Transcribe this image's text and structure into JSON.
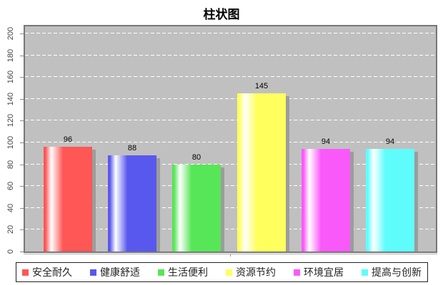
{
  "title": "柱状图",
  "chart_data": {
    "type": "bar",
    "title": "柱状图",
    "categories": [
      "安全耐久",
      "健康舒适",
      "生活便利",
      "资源节约",
      "环境宜居",
      "提高与创新"
    ],
    "values": [
      96,
      88,
      80,
      145,
      94,
      94
    ],
    "bar_colors": [
      "#ff5656",
      "#5858ee",
      "#57e657",
      "#ffff5e",
      "#fa59fa",
      "#5ffcfc"
    ],
    "xlabel": "",
    "ylabel": "",
    "ylim": [
      0,
      200
    ],
    "yticks": [
      0,
      20,
      40,
      60,
      80,
      100,
      120,
      140,
      160,
      180,
      200
    ],
    "grid": "horizontal dashed white gridlines",
    "plot_background": "#c0c0c0",
    "legend_position": "bottom",
    "value_labels_shown": true
  },
  "legend": {
    "items": [
      {
        "label": "安全耐久",
        "color": "#ff5656"
      },
      {
        "label": "健康舒适",
        "color": "#5858ee"
      },
      {
        "label": "生活便利",
        "color": "#57e657"
      },
      {
        "label": "资源节约",
        "color": "#ffff5e"
      },
      {
        "label": "环境宜居",
        "color": "#fa59fa"
      },
      {
        "label": "提高与创新",
        "color": "#5ffcfc"
      }
    ]
  }
}
